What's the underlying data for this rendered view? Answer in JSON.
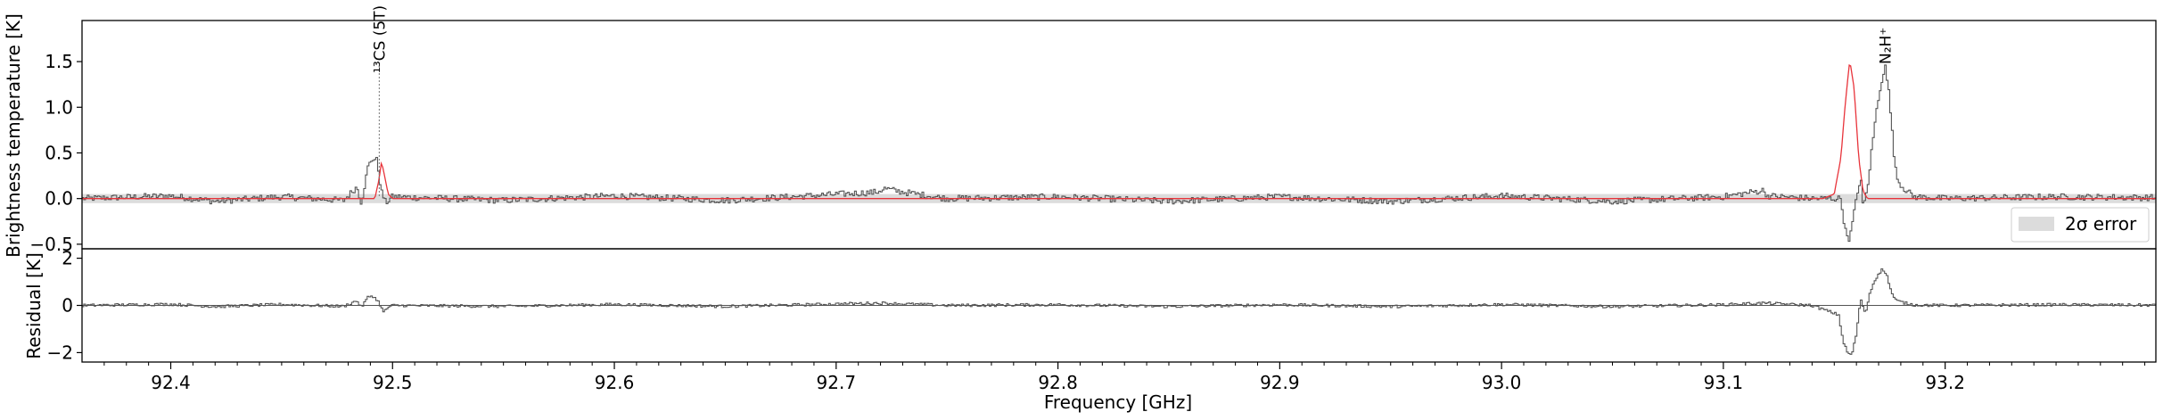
{
  "chart_data": [
    {
      "type": "line",
      "panel": "top",
      "ylabel": "Brightness temperature [K]",
      "xlim": [
        92.36,
        93.295
      ],
      "ylim": [
        -0.55,
        1.95
      ],
      "yticks": [
        "−0.5",
        "0.0",
        "0.5",
        "1.0",
        "1.5"
      ],
      "ytick_values": [
        -0.5,
        0.0,
        0.5,
        1.0,
        1.5
      ],
      "error_band": [
        -0.05,
        0.05
      ],
      "legend": {
        "label": "2σ error",
        "placement": "lower-right"
      },
      "annotations": [
        {
          "label": "¹³CS (5T)",
          "x": 92.494
        },
        {
          "label": "N₂H⁺",
          "x": 93.173
        }
      ],
      "series": [
        {
          "kind": "observed",
          "color": "#555555",
          "points": [
            [
              92.36,
              0.0
            ],
            [
              92.4,
              0.03
            ],
            [
              92.42,
              -0.03
            ],
            [
              92.45,
              0.02
            ],
            [
              92.478,
              -0.02
            ],
            [
              92.484,
              0.13
            ],
            [
              92.486,
              -0.05
            ],
            [
              92.489,
              0.35
            ],
            [
              92.491,
              0.44
            ],
            [
              92.493,
              0.42
            ],
            [
              92.495,
              0.08
            ],
            [
              92.497,
              -0.05
            ],
            [
              92.5,
              0.02
            ],
            [
              92.55,
              -0.02
            ],
            [
              92.6,
              0.03
            ],
            [
              92.65,
              -0.02
            ],
            [
              92.718,
              0.07
            ],
            [
              92.722,
              0.11
            ],
            [
              92.728,
              0.08
            ],
            [
              92.75,
              0.0
            ],
            [
              92.8,
              0.02
            ],
            [
              92.85,
              -0.03
            ],
            [
              92.9,
              0.02
            ],
            [
              92.95,
              -0.03
            ],
            [
              93.0,
              0.03
            ],
            [
              93.05,
              -0.03
            ],
            [
              93.1,
              0.02
            ],
            [
              93.118,
              0.09
            ],
            [
              93.12,
              0.03
            ],
            [
              93.14,
              0.0
            ],
            [
              93.153,
              0.0
            ],
            [
              93.155,
              -0.35
            ],
            [
              93.157,
              -0.45
            ],
            [
              93.159,
              -0.15
            ],
            [
              93.161,
              0.12
            ],
            [
              93.162,
              0.25
            ],
            [
              93.163,
              -0.1
            ],
            [
              93.165,
              0.1
            ],
            [
              93.167,
              0.55
            ],
            [
              93.169,
              0.95
            ],
            [
              93.171,
              1.25
            ],
            [
              93.173,
              1.45
            ],
            [
              93.175,
              1.1
            ],
            [
              93.177,
              0.45
            ],
            [
              93.179,
              0.18
            ],
            [
              93.182,
              0.1
            ],
            [
              93.186,
              0.02
            ],
            [
              93.2,
              0.0
            ],
            [
              93.25,
              0.02
            ],
            [
              93.295,
              0.01
            ]
          ]
        },
        {
          "kind": "model",
          "color": "#e8343b",
          "points": [
            [
              92.36,
              0.0
            ],
            [
              92.492,
              0.0
            ],
            [
              92.494,
              0.22
            ],
            [
              92.495,
              0.4
            ],
            [
              92.496,
              0.3
            ],
            [
              92.498,
              0.05
            ],
            [
              92.5,
              0.0
            ],
            [
              93.145,
              0.0
            ],
            [
              93.15,
              0.05
            ],
            [
              93.153,
              0.45
            ],
            [
              93.155,
              1.05
            ],
            [
              93.157,
              1.52
            ],
            [
              93.159,
              1.2
            ],
            [
              93.161,
              0.45
            ],
            [
              93.163,
              0.08
            ],
            [
              93.165,
              0.0
            ],
            [
              93.295,
              0.0
            ]
          ]
        }
      ]
    },
    {
      "type": "line",
      "panel": "bottom",
      "ylabel": "Residual [K]",
      "xlabel": "Frequency [GHz]",
      "xlim": [
        92.36,
        93.295
      ],
      "ylim": [
        -2.4,
        2.4
      ],
      "yticks": [
        "−2",
        "0",
        "2"
      ],
      "ytick_values": [
        -2,
        0,
        2
      ],
      "xticks": [
        "92.4",
        "92.5",
        "92.6",
        "92.7",
        "92.8",
        "92.9",
        "93.0",
        "93.1",
        "93.2"
      ],
      "xtick_values": [
        92.4,
        92.5,
        92.6,
        92.7,
        92.8,
        92.9,
        93.0,
        93.1,
        93.2
      ],
      "series": [
        {
          "kind": "residual",
          "color": "#555555",
          "points": [
            [
              92.36,
              0.0
            ],
            [
              92.4,
              0.05
            ],
            [
              92.42,
              -0.05
            ],
            [
              92.45,
              0.04
            ],
            [
              92.478,
              -0.04
            ],
            [
              92.484,
              0.2
            ],
            [
              92.486,
              -0.08
            ],
            [
              92.489,
              0.35
            ],
            [
              92.491,
              0.42
            ],
            [
              92.494,
              0.12
            ],
            [
              92.496,
              -0.3
            ],
            [
              92.498,
              -0.08
            ],
            [
              92.5,
              0.0
            ],
            [
              92.55,
              -0.04
            ],
            [
              92.6,
              0.04
            ],
            [
              92.65,
              -0.04
            ],
            [
              92.72,
              0.1
            ],
            [
              92.75,
              0.0
            ],
            [
              92.8,
              0.03
            ],
            [
              92.85,
              -0.05
            ],
            [
              92.9,
              0.03
            ],
            [
              92.95,
              -0.05
            ],
            [
              93.0,
              0.04
            ],
            [
              93.05,
              -0.05
            ],
            [
              93.1,
              0.03
            ],
            [
              93.118,
              0.1
            ],
            [
              93.14,
              0.0
            ],
            [
              93.152,
              -0.4
            ],
            [
              93.154,
              -1.5
            ],
            [
              93.156,
              -2.0
            ],
            [
              93.158,
              -2.1
            ],
            [
              93.16,
              -1.2
            ],
            [
              93.162,
              0.3
            ],
            [
              93.164,
              -0.4
            ],
            [
              93.166,
              0.5
            ],
            [
              93.168,
              1.0
            ],
            [
              93.17,
              1.35
            ],
            [
              93.172,
              1.55
            ],
            [
              93.174,
              1.2
            ],
            [
              93.176,
              0.5
            ],
            [
              93.178,
              0.2
            ],
            [
              93.182,
              0.1
            ],
            [
              93.186,
              0.02
            ],
            [
              93.2,
              0.0
            ],
            [
              93.25,
              0.03
            ],
            [
              93.295,
              0.01
            ]
          ]
        }
      ]
    }
  ]
}
